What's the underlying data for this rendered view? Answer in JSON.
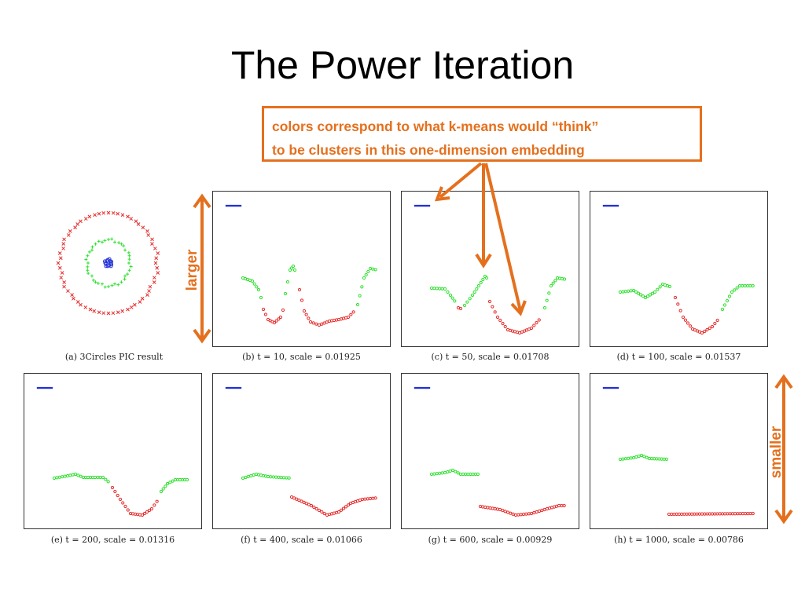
{
  "title": "The Power Iteration",
  "callout": {
    "line1": "colors correspond to what k-means would “think”",
    "line2": "to be clusters in this one-dimension embedding"
  },
  "arrow_labels": {
    "larger": "larger",
    "smaller": "smaller"
  },
  "colors": {
    "accent": "#e4701e",
    "red": "#e62b2b",
    "green": "#2ee02e",
    "blue": "#1f2fd6"
  },
  "panels": [
    {
      "id": "a",
      "caption": "(a) 3Circles PIC result"
    },
    {
      "id": "b",
      "caption": "(b)  t = 10, scale = 0.01925"
    },
    {
      "id": "c",
      "caption": "(c)  t = 50, scale = 0.01708"
    },
    {
      "id": "d",
      "caption": "(d)  t = 100, scale = 0.01537"
    },
    {
      "id": "e",
      "caption": "(e)  t = 200, scale = 0.01316"
    },
    {
      "id": "f",
      "caption": "(f)  t = 400, scale = 0.01066"
    },
    {
      "id": "g",
      "caption": "(g)  t = 600, scale = 0.00929"
    },
    {
      "id": "h",
      "caption": "(h)  t = 1000, scale = 0.00786"
    }
  ]
}
